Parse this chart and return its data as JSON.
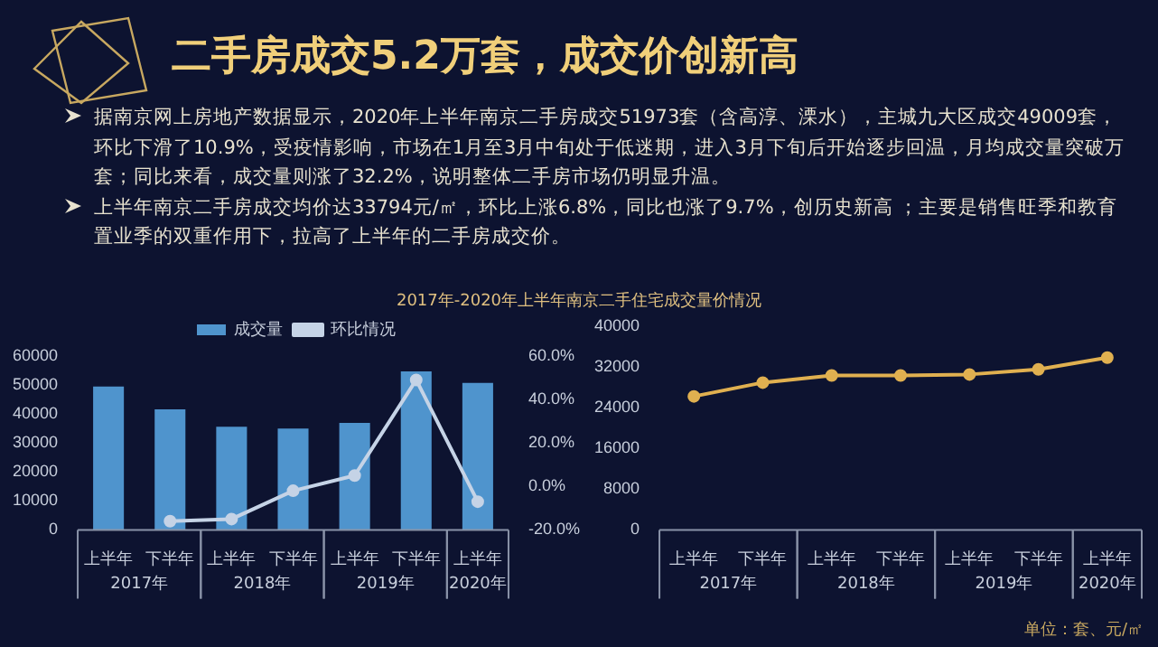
{
  "chart_data": [
    {
      "type": "bar",
      "title": "二手房成交5.2万套，成交价创新高",
      "subtitle": "2017年-2020年上半年南京二手住宅成交量价情况",
      "categories": [
        "上半年",
        "下半年",
        "上半年",
        "下半年",
        "上半年",
        "下半年",
        "上半年"
      ],
      "series": [
        {
          "name": "成交量",
          "color": "#4f94cd",
          "values": [
            49500,
            41600,
            35600,
            35000,
            36900,
            54700,
            50700
          ]
        },
        {
          "name": "环比情况",
          "type": "line",
          "axis": "y2",
          "color": "#c5d3e6",
          "values": [
            null,
            -16,
            -15,
            -2,
            5,
            49,
            -7
          ]
        }
      ],
      "ylim": [
        0,
        60000
      ],
      "yticks": [
        0,
        10000,
        20000,
        30000,
        40000,
        50000,
        60000
      ],
      "y2lim": [
        -20,
        60
      ],
      "y2ticks": [
        {
          "value": -20,
          "label": "-20.0%"
        },
        {
          "value": 0,
          "label": "0.0%"
        },
        {
          "value": 20,
          "label": "20.0%"
        },
        {
          "value": 40,
          "label": "40.0%"
        },
        {
          "value": 60,
          "label": "60.0%"
        }
      ],
      "legend": "top",
      "marker": "circle",
      "grid": false,
      "annotations": [
        "据南京网上房地产数据显示，2020年上半年南京二手房成交51973套（含高淳、溧水），主城九大区成交49009套，环比下滑了10.9%，受疫情影响，市场在1月至3月中旬处于低迷期，进入3月下旬后开始逐步回温，月均成交量突破万套；同比来看，成交量则涨了32.2%，说明整体二手房市场仍明显升温。",
        "上半年南京二手房成交均价达33794元/㎡，环比上涨6.8%，同比也涨了9.7%，创历史新高 ；主要是销售旺季和教育置业季的双重作用下，拉高了上半年的二手房成交价。",
        "2017年",
        "2018年",
        "2019年",
        "2020年"
      ]
    },
    {
      "type": "line",
      "categories": [
        "上半年",
        "下半年",
        "上半年",
        "下半年",
        "上半年",
        "下半年",
        "上半年"
      ],
      "series": [
        {
          "color": "#e0b050",
          "values": [
            26200,
            28900,
            30300,
            30300,
            30500,
            31500,
            33800
          ]
        }
      ],
      "ylim": [
        0,
        40000
      ],
      "yticks": [
        0,
        8000,
        16000,
        24000,
        32000,
        40000
      ],
      "marker": "circle",
      "grid": false,
      "annotations": [
        "单位：套、元/㎡",
        "2017年",
        "2018年",
        "2019年",
        "2020年"
      ]
    }
  ]
}
